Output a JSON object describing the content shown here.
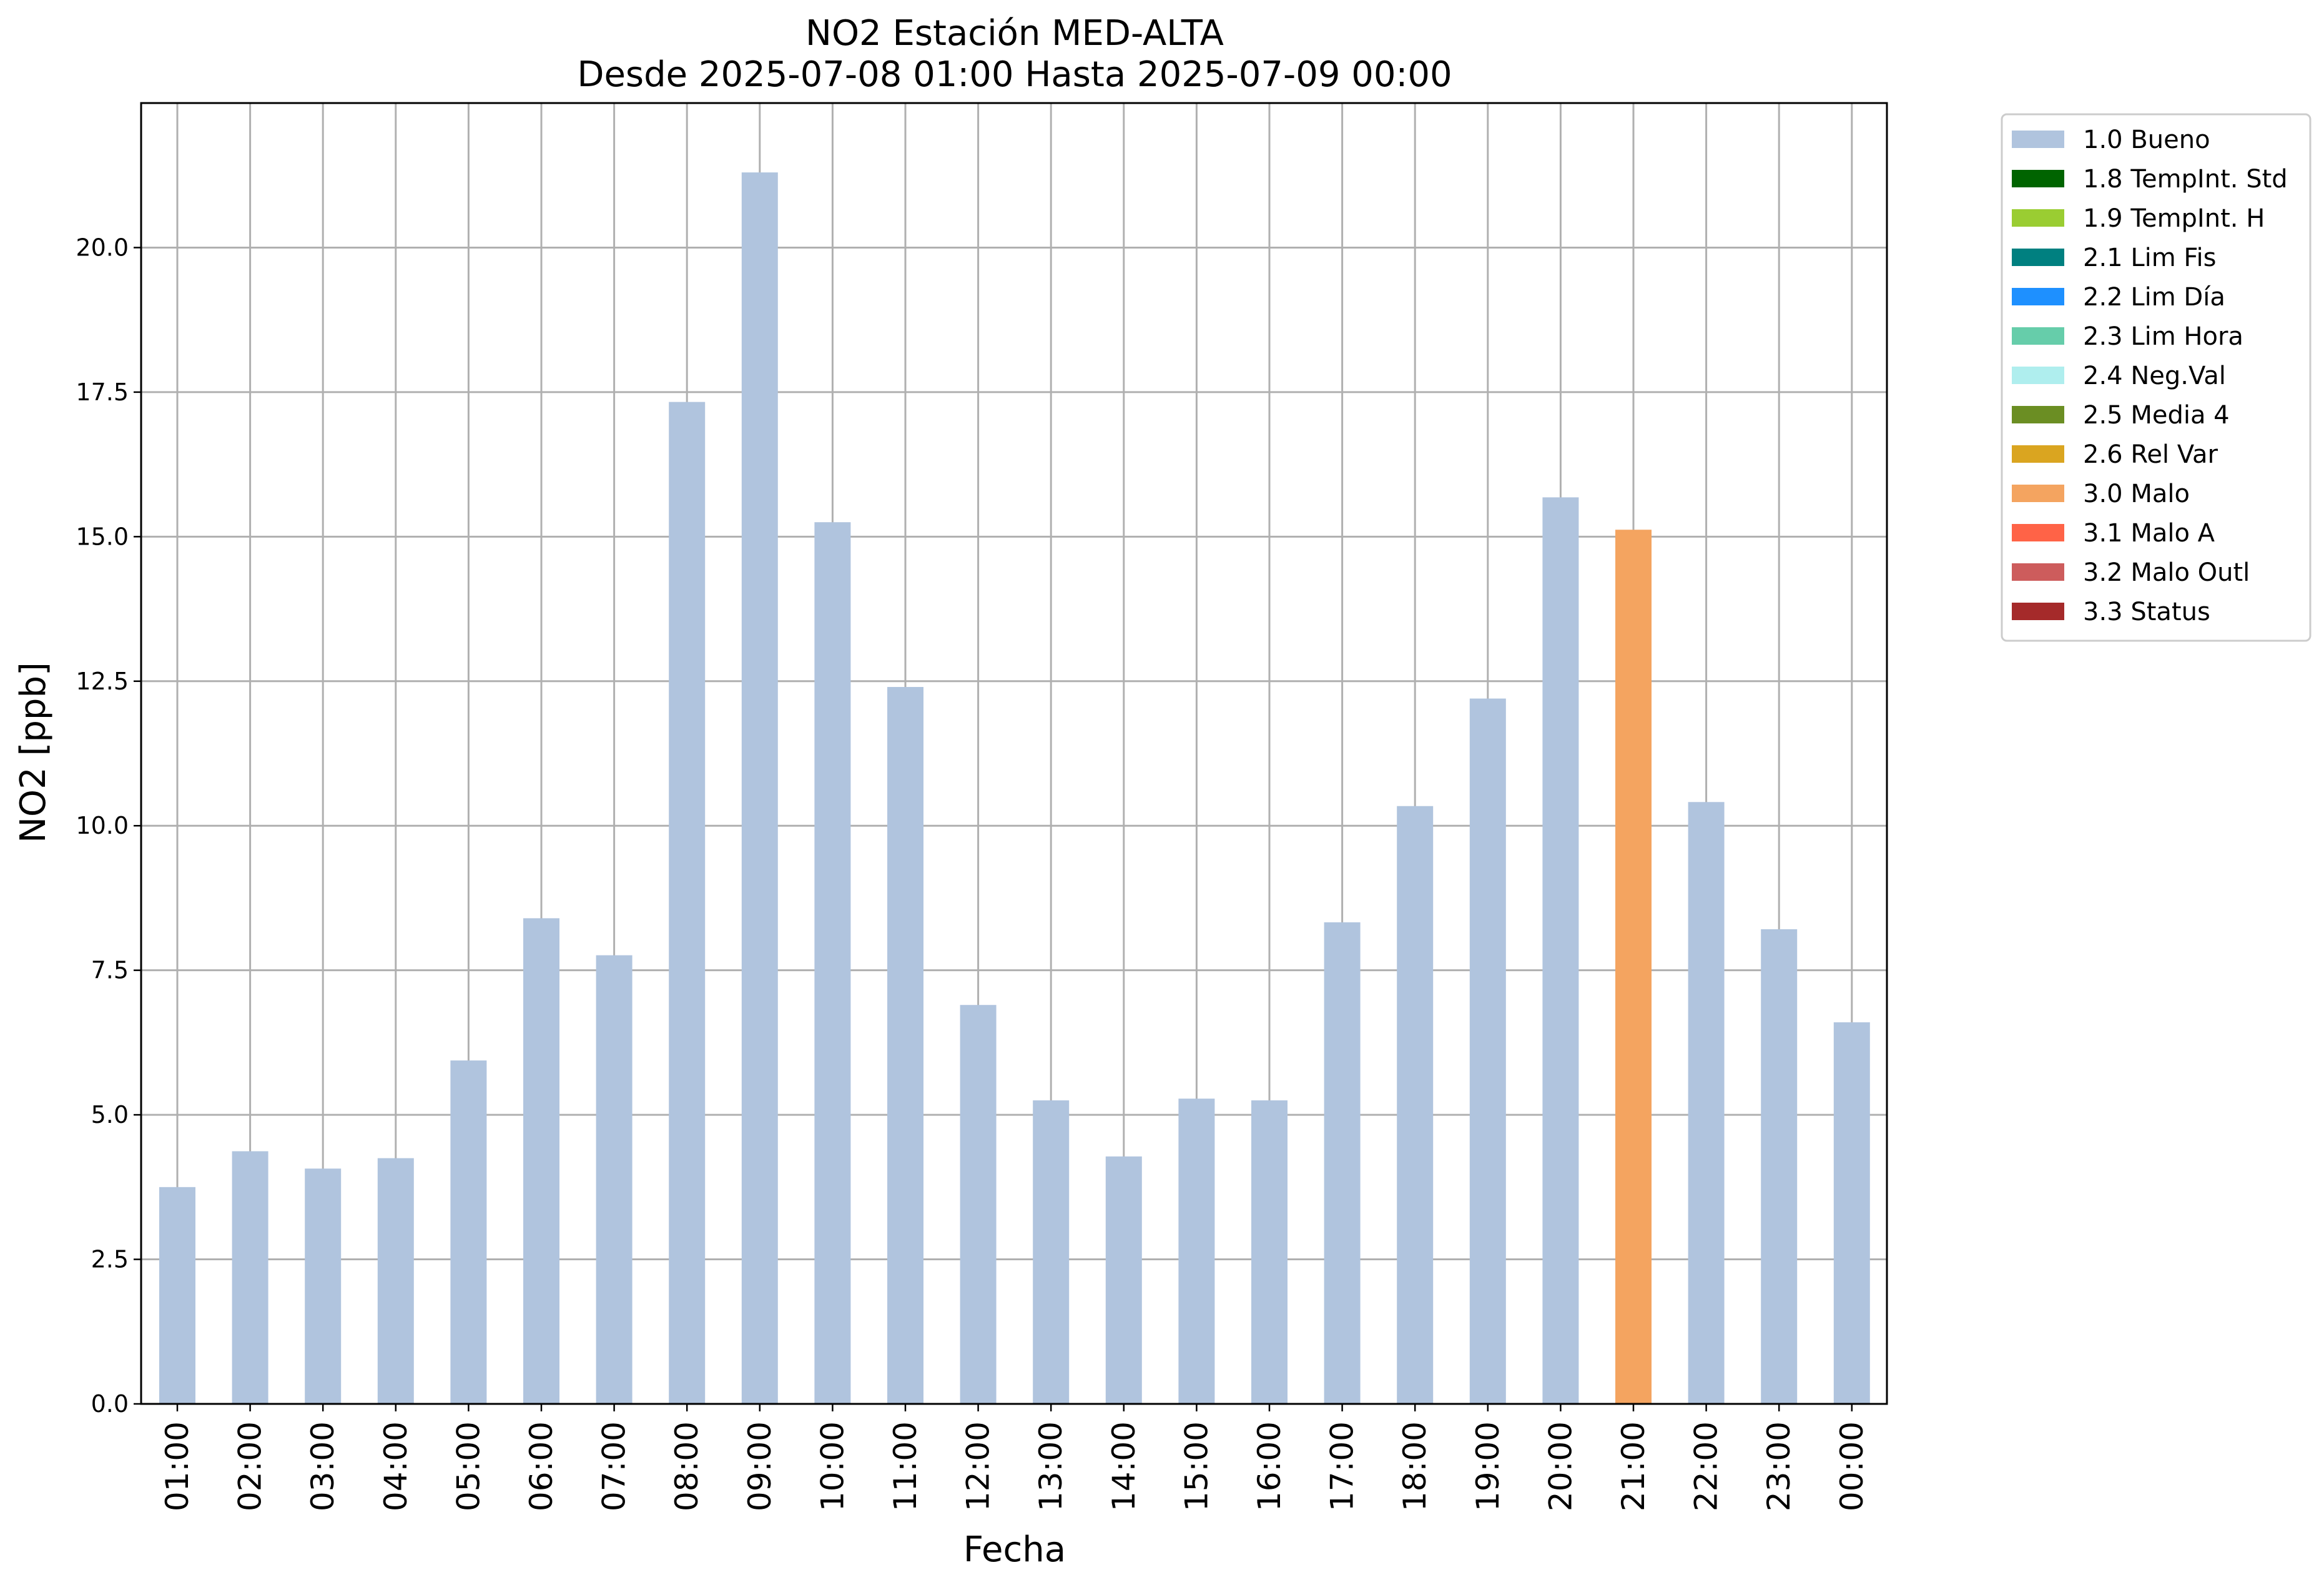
{
  "chart_data": {
    "type": "bar",
    "title": "NO2 Estación MED-ALTA",
    "subtitle": "Desde 2025-07-08 01:00 Hasta 2025-07-09 00:00",
    "xlabel": "Fecha",
    "ylabel": "NO2 [ppb]",
    "ylim": [
      0,
      22.5
    ],
    "yticks": [
      "0.0",
      "2.5",
      "5.0",
      "7.5",
      "10.0",
      "12.5",
      "15.0",
      "17.5",
      "20.0"
    ],
    "grid": true,
    "legend_position": "outside-top-right",
    "categories": [
      "01:00",
      "02:00",
      "03:00",
      "04:00",
      "05:00",
      "06:00",
      "07:00",
      "08:00",
      "09:00",
      "10:00",
      "11:00",
      "12:00",
      "13:00",
      "14:00",
      "15:00",
      "16:00",
      "17:00",
      "18:00",
      "19:00",
      "20:00",
      "21:00",
      "22:00",
      "23:00",
      "00:00"
    ],
    "values": [
      3.75,
      4.37,
      4.07,
      4.25,
      5.94,
      8.4,
      7.76,
      17.33,
      21.3,
      15.25,
      12.4,
      6.9,
      5.25,
      4.28,
      5.28,
      5.25,
      8.33,
      10.34,
      12.2,
      15.68,
      15.12,
      10.41,
      8.21,
      6.6
    ],
    "flags": [
      "1.0 Bueno",
      "1.0 Bueno",
      "1.0 Bueno",
      "1.0 Bueno",
      "1.0 Bueno",
      "1.0 Bueno",
      "1.0 Bueno",
      "1.0 Bueno",
      "1.0 Bueno",
      "1.0 Bueno",
      "1.0 Bueno",
      "1.0 Bueno",
      "1.0 Bueno",
      "1.0 Bueno",
      "1.0 Bueno",
      "1.0 Bueno",
      "1.0 Bueno",
      "1.0 Bueno",
      "1.0 Bueno",
      "1.0 Bueno",
      "3.0 Malo",
      "1.0 Bueno",
      "1.0 Bueno",
      "1.0 Bueno"
    ],
    "legend": [
      {
        "label": "1.0 Bueno",
        "color": "#b0c4de"
      },
      {
        "label": "1.8 TempInt. Std",
        "color": "#006400"
      },
      {
        "label": "1.9 TempInt. H",
        "color": "#9acd32"
      },
      {
        "label": "2.1 Lim Fis",
        "color": "#008080"
      },
      {
        "label": "2.2 Lim Día",
        "color": "#1e90ff"
      },
      {
        "label": "2.3 Lim Hora",
        "color": "#66cdaa"
      },
      {
        "label": "2.4 Neg.Val",
        "color": "#afeeee"
      },
      {
        "label": "2.5 Media 4",
        "color": "#6b8e23"
      },
      {
        "label": "2.6 Rel Var",
        "color": "#daa520"
      },
      {
        "label": "3.0 Malo",
        "color": "#f4a460"
      },
      {
        "label": "3.1 Malo A",
        "color": "#ff6347"
      },
      {
        "label": "3.2 Malo Outl",
        "color": "#cd5c5c"
      },
      {
        "label": "3.3 Status",
        "color": "#a52a2a"
      }
    ],
    "grid_color": "#b0b0b0"
  }
}
